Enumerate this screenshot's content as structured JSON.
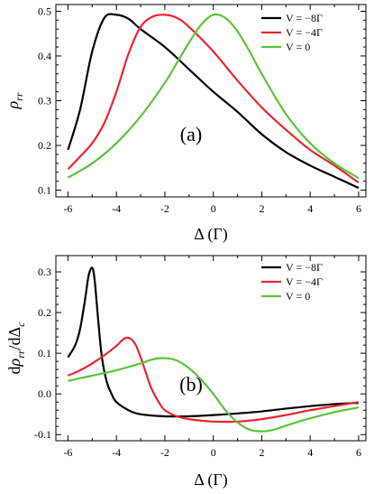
{
  "chart_data": [
    {
      "type": "line",
      "panel_label": "(a)",
      "xlabel": "Δ  (Γ)",
      "ylabel": "ρ_rr",
      "xlim": [
        -6.5,
        6.3
      ],
      "ylim": [
        0.085,
        0.515
      ],
      "xticks": [
        -6,
        -4,
        -2,
        0,
        2,
        4,
        6
      ],
      "xtick_labels": [
        "-6",
        "-4",
        "-2",
        "0",
        "2",
        "4",
        "6"
      ],
      "yticks": [
        0.1,
        0.2,
        0.3,
        0.4,
        0.5
      ],
      "ytick_labels": [
        "0.1",
        "0.2",
        "0.3",
        "0.4",
        "0.5"
      ],
      "grid": false,
      "legend_position": "top-right",
      "series": [
        {
          "name": "V = −8Γ",
          "color": "#000000",
          "x": [
            -6,
            -5.5,
            -5,
            -4.5,
            -4,
            -3.5,
            -3,
            -2,
            -1,
            0,
            1,
            2,
            3,
            4,
            5,
            6
          ],
          "y": [
            0.19,
            0.28,
            0.41,
            0.485,
            0.492,
            0.483,
            0.46,
            0.42,
            0.37,
            0.32,
            0.275,
            0.225,
            0.185,
            0.155,
            0.13,
            0.105
          ]
        },
        {
          "name": "V = −4Γ",
          "color": "#e8262e",
          "x": [
            -6,
            -5.5,
            -5,
            -4.5,
            -4,
            -3.5,
            -3,
            -2.5,
            -2,
            -1.5,
            -1,
            0,
            1,
            2,
            3,
            4,
            5,
            6
          ],
          "y": [
            0.147,
            0.175,
            0.205,
            0.25,
            0.32,
            0.405,
            0.465,
            0.488,
            0.492,
            0.485,
            0.465,
            0.41,
            0.345,
            0.285,
            0.235,
            0.19,
            0.155,
            0.117
          ]
        },
        {
          "name": "V = 0",
          "color": "#5cc33a",
          "x": [
            -6,
            -5,
            -4,
            -3,
            -2,
            -1.5,
            -1,
            -0.5,
            0,
            0.5,
            1,
            1.5,
            2,
            3,
            4,
            5,
            6
          ],
          "y": [
            0.128,
            0.16,
            0.205,
            0.265,
            0.34,
            0.385,
            0.43,
            0.47,
            0.492,
            0.485,
            0.455,
            0.41,
            0.36,
            0.27,
            0.205,
            0.16,
            0.127
          ]
        }
      ]
    },
    {
      "type": "line",
      "panel_label": "(b)",
      "xlabel": "Δ  (Γ)",
      "ylabel": "dρ_rr/dΔ_c",
      "xlim": [
        -6.5,
        6.3
      ],
      "ylim": [
        -0.115,
        0.34
      ],
      "xticks": [
        -6,
        -4,
        -2,
        0,
        2,
        4,
        6
      ],
      "xtick_labels": [
        "-6",
        "-4",
        "-2",
        "0",
        "2",
        "4",
        "6"
      ],
      "yticks": [
        -0.1,
        0.0,
        0.1,
        0.2,
        0.3
      ],
      "ytick_labels": [
        "-0.1",
        "0.0",
        "0.1",
        "0.2",
        "0.3"
      ],
      "grid": false,
      "legend_position": "top-right",
      "series": [
        {
          "name": "V = −8Γ",
          "color": "#000000",
          "x": [
            -6,
            -5.7,
            -5.5,
            -5.3,
            -5.15,
            -5.0,
            -4.9,
            -4.75,
            -4.6,
            -4.4,
            -4.2,
            -4.0,
            -3.5,
            -3,
            -2,
            -1,
            0,
            1,
            2,
            3,
            4,
            5,
            6
          ],
          "y": [
            0.09,
            0.12,
            0.16,
            0.23,
            0.29,
            0.31,
            0.28,
            0.18,
            0.09,
            0.03,
            0.0,
            -0.02,
            -0.04,
            -0.05,
            -0.055,
            -0.055,
            -0.052,
            -0.048,
            -0.043,
            -0.036,
            -0.03,
            -0.025,
            -0.022
          ]
        },
        {
          "name": "V = −4Γ",
          "color": "#e8262e",
          "x": [
            -6,
            -5.5,
            -5,
            -4.5,
            -4,
            -3.8,
            -3.6,
            -3.4,
            -3.2,
            -3,
            -2.8,
            -2.6,
            -2.4,
            -2.2,
            -2,
            -1.5,
            -1,
            0,
            1,
            2,
            3,
            4,
            5,
            6
          ],
          "y": [
            0.045,
            0.058,
            0.075,
            0.095,
            0.118,
            0.13,
            0.138,
            0.135,
            0.12,
            0.09,
            0.055,
            0.02,
            -0.005,
            -0.025,
            -0.04,
            -0.055,
            -0.062,
            -0.068,
            -0.068,
            -0.062,
            -0.052,
            -0.04,
            -0.03,
            -0.02
          ]
        },
        {
          "name": "V = 0",
          "color": "#5cc33a",
          "x": [
            -6,
            -5,
            -4,
            -3,
            -2.5,
            -2,
            -1.5,
            -1,
            -0.5,
            0,
            0.5,
            1,
            1.5,
            2,
            2.5,
            3,
            4,
            5,
            6
          ],
          "y": [
            0.032,
            0.045,
            0.058,
            0.075,
            0.085,
            0.088,
            0.082,
            0.063,
            0.035,
            0.0,
            -0.04,
            -0.07,
            -0.088,
            -0.092,
            -0.088,
            -0.078,
            -0.06,
            -0.045,
            -0.033
          ]
        }
      ]
    }
  ]
}
